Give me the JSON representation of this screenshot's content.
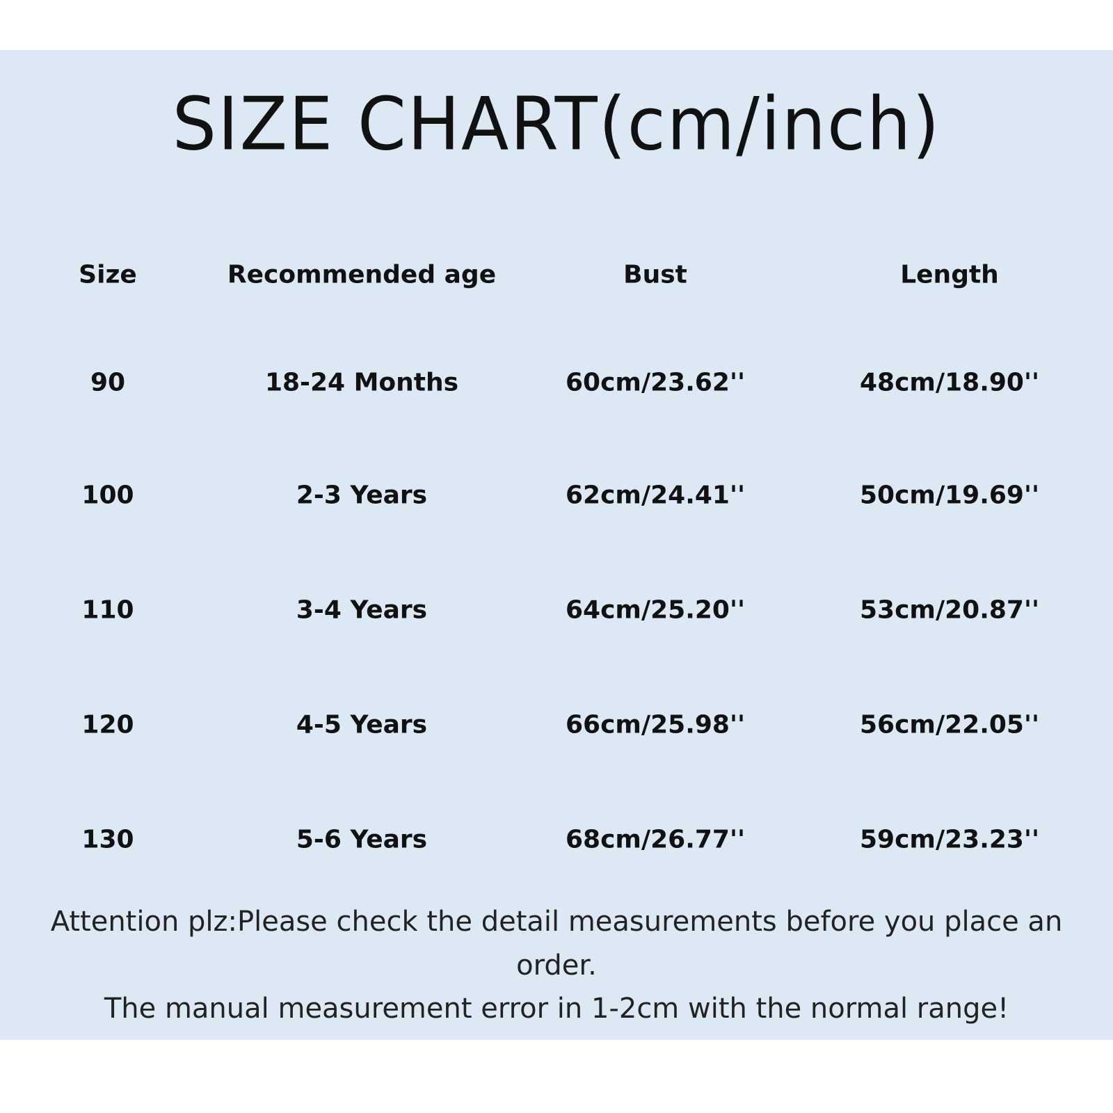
{
  "title": "SIZE CHART(cm/inch)",
  "table": {
    "headers": [
      "Size",
      "Recommended age",
      "Bust",
      "Length"
    ],
    "rows": [
      [
        "90",
        "18-24 Months",
        "60cm/23.62''",
        "48cm/18.90''"
      ],
      [
        "100",
        "2-3 Years",
        "62cm/24.41''",
        "50cm/19.69''"
      ],
      [
        "110",
        "3-4 Years",
        "64cm/25.20''",
        "53cm/20.87''"
      ],
      [
        "120",
        "4-5 Years",
        "66cm/25.98''",
        "56cm/22.05''"
      ],
      [
        "130",
        "5-6 Years",
        "68cm/26.77''",
        "59cm/23.23''"
      ]
    ]
  },
  "footer": {
    "line1": "Attention plz:Please check the detail measurements before you place an",
    "line2": "order.",
    "line3": "The manual measurement error in 1-2cm with the normal range!"
  },
  "colors": {
    "background": "#dce9f5",
    "text": "#111111"
  }
}
